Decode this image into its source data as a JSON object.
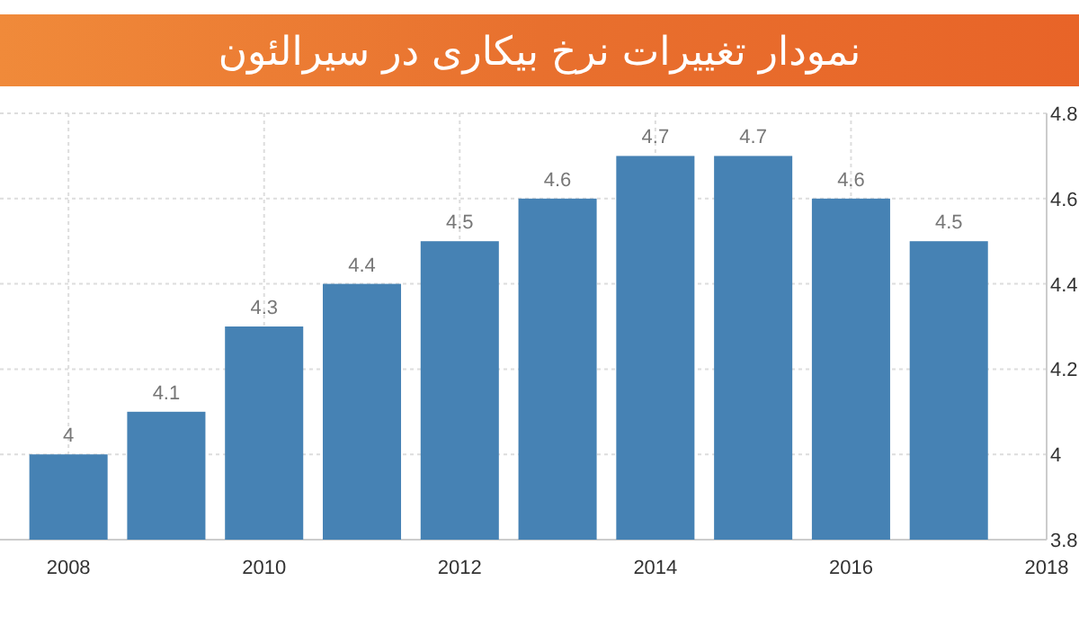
{
  "chart_data": {
    "type": "bar",
    "title": "نمودار تغییرات نرخ بیکاری در سیرالئون",
    "x": [
      2008,
      2009,
      2010,
      2011,
      2012,
      2013,
      2014,
      2015,
      2016,
      2017
    ],
    "values": [
      4,
      4.1,
      4.3,
      4.4,
      4.5,
      4.6,
      4.7,
      4.7,
      4.6,
      4.5
    ],
    "color": "#4682b4",
    "xlim": [
      2007.3,
      2018
    ],
    "xticks": [
      2008,
      2010,
      2012,
      2014,
      2016,
      2018
    ],
    "ylim": [
      3.8,
      4.8
    ],
    "yticks": [
      3.8,
      4,
      4.2,
      4.4,
      4.6,
      4.8
    ],
    "grid": true,
    "data_labels": true
  }
}
